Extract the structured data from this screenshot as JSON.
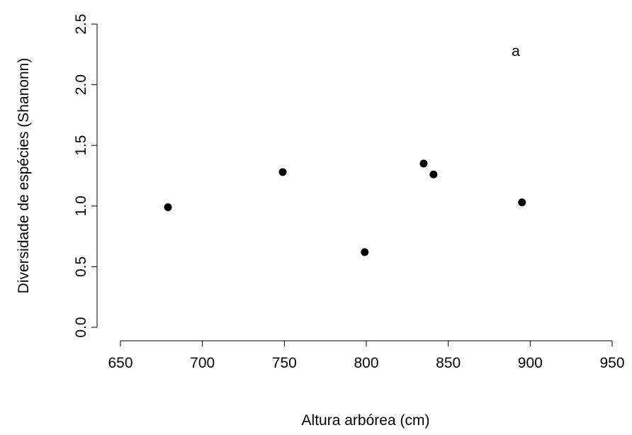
{
  "chart_data": {
    "type": "scatter",
    "xlabel": "Altura arbórea (cm)",
    "ylabel": "Diversidade de espécies (Shanonn)",
    "annotation": "a",
    "xlim": [
      650,
      950
    ],
    "ylim": [
      0.0,
      2.5
    ],
    "xticks": [
      650,
      700,
      750,
      800,
      850,
      900,
      950
    ],
    "yticks": [
      "0.0",
      "0.5",
      "1.0",
      "1.5",
      "2.0",
      "2.5"
    ],
    "grid": false,
    "points": [
      {
        "x": 679,
        "y": 0.99
      },
      {
        "x": 749,
        "y": 1.28
      },
      {
        "x": 799,
        "y": 0.62
      },
      {
        "x": 835,
        "y": 1.35
      },
      {
        "x": 841,
        "y": 1.26
      },
      {
        "x": 895,
        "y": 1.03
      }
    ],
    "marker_color": "#000000"
  }
}
